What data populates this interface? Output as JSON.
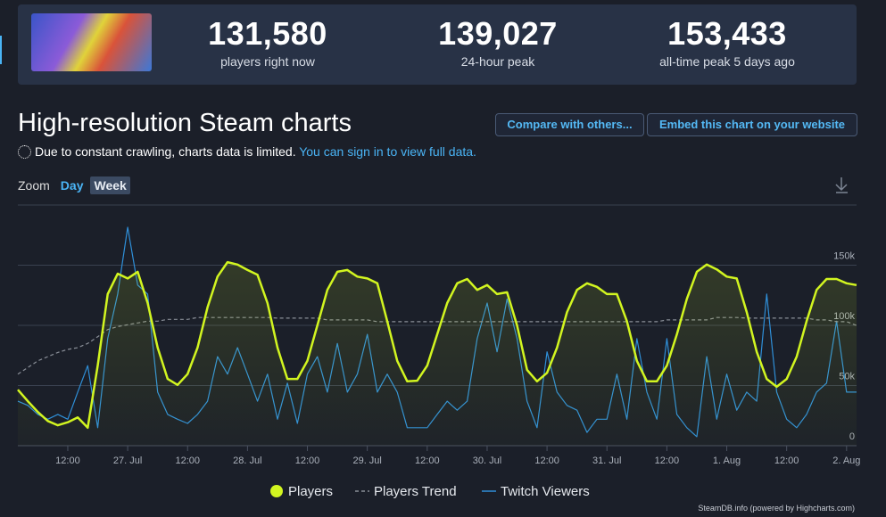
{
  "header": {
    "stats": [
      {
        "value": "131,580",
        "label": "players right now"
      },
      {
        "value": "139,027",
        "label": "24-hour peak"
      },
      {
        "value": "153,433",
        "label": "all-time peak 5 days ago"
      }
    ]
  },
  "heading": "High-resolution Steam charts",
  "buttons": [
    "Compare with others...",
    "Embed this chart on your website"
  ],
  "notice": {
    "text": "Due to constant crawling, charts data is limited.",
    "link": "You can sign in to view full data."
  },
  "zoom": {
    "label": "Zoom",
    "options": [
      "Day",
      "Week"
    ],
    "selected": 1
  },
  "chart_data": {
    "type": "line",
    "x": [
      "26. Jul 02:00",
      "26. Jul 04:00",
      "26. Jul 06:00",
      "26. Jul 08:00",
      "26. Jul 10:00",
      "26. Jul 12:00",
      "26. Jul 14:00",
      "26. Jul 16:00",
      "26. Jul 18:00",
      "26. Jul 20:00",
      "26. Jul 22:00",
      "27. Jul 00:00",
      "27. Jul 02:00",
      "27. Jul 04:00",
      "27. Jul 06:00",
      "27. Jul 08:00",
      "27. Jul 10:00",
      "27. Jul 12:00",
      "27. Jul 14:00",
      "27. Jul 16:00",
      "27. Jul 18:00",
      "27. Jul 20:00",
      "27. Jul 22:00",
      "28. Jul 00:00",
      "28. Jul 02:00",
      "28. Jul 04:00",
      "28. Jul 06:00",
      "28. Jul 08:00",
      "28. Jul 10:00",
      "28. Jul 12:00",
      "28. Jul 14:00",
      "28. Jul 16:00",
      "28. Jul 18:00",
      "28. Jul 20:00",
      "28. Jul 22:00",
      "29. Jul 00:00",
      "29. Jul 02:00",
      "29. Jul 04:00",
      "29. Jul 06:00",
      "29. Jul 08:00",
      "29. Jul 10:00",
      "29. Jul 12:00",
      "29. Jul 14:00",
      "29. Jul 16:00",
      "29. Jul 18:00",
      "29. Jul 20:00",
      "29. Jul 22:00",
      "30. Jul 00:00",
      "30. Jul 02:00",
      "30. Jul 04:00",
      "30. Jul 06:00",
      "30. Jul 08:00",
      "30. Jul 10:00",
      "30. Jul 12:00",
      "30. Jul 14:00",
      "30. Jul 16:00",
      "30. Jul 18:00",
      "30. Jul 20:00",
      "30. Jul 22:00",
      "31. Jul 00:00",
      "31. Jul 02:00",
      "31. Jul 04:00",
      "31. Jul 06:00",
      "31. Jul 08:00",
      "31. Jul 10:00",
      "31. Jul 12:00",
      "31. Jul 14:00",
      "31. Jul 16:00",
      "31. Jul 18:00",
      "31. Jul 20:00",
      "31. Jul 22:00",
      "1. Aug 00:00",
      "1. Aug 02:00",
      "1. Aug 04:00",
      "1. Aug 06:00",
      "1. Aug 08:00",
      "1. Aug 10:00",
      "1. Aug 12:00",
      "1. Aug 14:00",
      "1. Aug 16:00",
      "1. Aug 18:00",
      "1. Aug 20:00",
      "1. Aug 22:00",
      "2. Aug 00:00",
      "2. Aug 02:00"
    ],
    "xlim": [
      "26. Jul 02:00",
      "2. Aug 02:00"
    ],
    "xticks": [
      {
        "value": "26. Jul 12:00",
        "label": "12:00"
      },
      {
        "value": "27. Jul 00:00",
        "label": "27. Jul"
      },
      {
        "value": "27. Jul 12:00",
        "label": "12:00"
      },
      {
        "value": "28. Jul 00:00",
        "label": "28. Jul"
      },
      {
        "value": "28. Jul 12:00",
        "label": "12:00"
      },
      {
        "value": "29. Jul 00:00",
        "label": "29. Jul"
      },
      {
        "value": "29. Jul 12:00",
        "label": "12:00"
      },
      {
        "value": "30. Jul 00:00",
        "label": "30. Jul"
      },
      {
        "value": "30. Jul 12:00",
        "label": "12:00"
      },
      {
        "value": "31. Jul 00:00",
        "label": "31. Jul"
      },
      {
        "value": "31. Jul 12:00",
        "label": "12:00"
      },
      {
        "value": "1. Aug 00:00",
        "label": "1. Aug"
      },
      {
        "value": "1. Aug 12:00",
        "label": "12:00"
      },
      {
        "value": "2. Aug 00:00",
        "label": "2. Aug"
      }
    ],
    "ylim": [
      0,
      200000
    ],
    "yticks": [
      0,
      {
        "value": 50000,
        "label": "50k"
      },
      {
        "value": 100000,
        "label": "100k"
      },
      {
        "value": 150000,
        "label": "150k"
      }
    ],
    "grid": true,
    "series": [
      {
        "name": "Players",
        "color": "#d2f520",
        "fill": true,
        "legend_symbol": "circle",
        "values": [
          46500,
          37000,
          28000,
          20500,
          17000,
          19500,
          23500,
          15000,
          66500,
          126000,
          143000,
          139000,
          144500,
          118500,
          81500,
          55500,
          50500,
          59500,
          81500,
          115000,
          140500,
          152500,
          150500,
          146000,
          142000,
          118500,
          81500,
          55500,
          55500,
          70500,
          100000,
          129500,
          144500,
          146000,
          140500,
          139000,
          135000,
          103500,
          70500,
          53500,
          54000,
          66500,
          92500,
          118500,
          135000,
          138500,
          129500,
          133500,
          126000,
          127500,
          100000,
          63000,
          53500,
          60500,
          81500,
          111000,
          129500,
          135000,
          132000,
          126000,
          126000,
          103500,
          70500,
          53500,
          53500,
          66500,
          92500,
          122000,
          144500,
          150500,
          146500,
          140500,
          139000,
          111000,
          78000,
          55500,
          49000,
          55500,
          74000,
          103500,
          129500,
          138500,
          138500,
          135000,
          133500
        ]
      },
      {
        "name": "Players Trend",
        "color": "#8a8f98",
        "dash": "dashed",
        "legend_symbol": "line",
        "values": [
          59500,
          65000,
          70500,
          74000,
          77500,
          80000,
          81500,
          85000,
          90500,
          96500,
          99000,
          100500,
          102000,
          103500,
          103500,
          105000,
          105000,
          105000,
          106500,
          106500,
          106500,
          106500,
          106500,
          106500,
          106500,
          106500,
          106000,
          106000,
          106000,
          106000,
          106000,
          104500,
          104500,
          104500,
          104500,
          104500,
          103000,
          103000,
          103000,
          103000,
          103000,
          103000,
          103000,
          103000,
          103000,
          103000,
          103000,
          103000,
          103000,
          103000,
          103000,
          103000,
          103000,
          103000,
          103000,
          103000,
          103000,
          103000,
          103000,
          103000,
          103000,
          103000,
          103000,
          103000,
          103000,
          104500,
          104500,
          104500,
          104500,
          104500,
          106500,
          106500,
          106500,
          106000,
          106000,
          106000,
          106000,
          106000,
          106000,
          106000,
          104500,
          104500,
          103000,
          103000,
          100000
        ]
      },
      {
        "name": "Twitch Viewers",
        "color": "#2f8fd8",
        "legend_symbol": "line",
        "values": [
          37000,
          33500,
          26000,
          22000,
          26000,
          22000,
          44500,
          66500,
          15000,
          89000,
          126000,
          181500,
          133500,
          126000,
          44500,
          26000,
          22000,
          18500,
          26000,
          37000,
          74000,
          59500,
          81500,
          59500,
          37000,
          59500,
          22000,
          52000,
          18500,
          59500,
          74000,
          44500,
          85000,
          44500,
          59500,
          92500,
          44500,
          59500,
          44500,
          15000,
          15000,
          15000,
          26000,
          37000,
          29500,
          37000,
          89000,
          118500,
          78000,
          122000,
          89000,
          37000,
          15000,
          78000,
          44500,
          33500,
          29500,
          11000,
          22000,
          22000,
          59500,
          22000,
          89000,
          44500,
          22000,
          89000,
          26000,
          15000,
          7500,
          74000,
          22000,
          59500,
          29500,
          44500,
          37000,
          126000,
          44500,
          22000,
          15000,
          26000,
          44500,
          52000,
          103500,
          44500,
          44500
        ]
      }
    ],
    "credit": "SteamDB.info (powered by Highcharts.com)"
  }
}
